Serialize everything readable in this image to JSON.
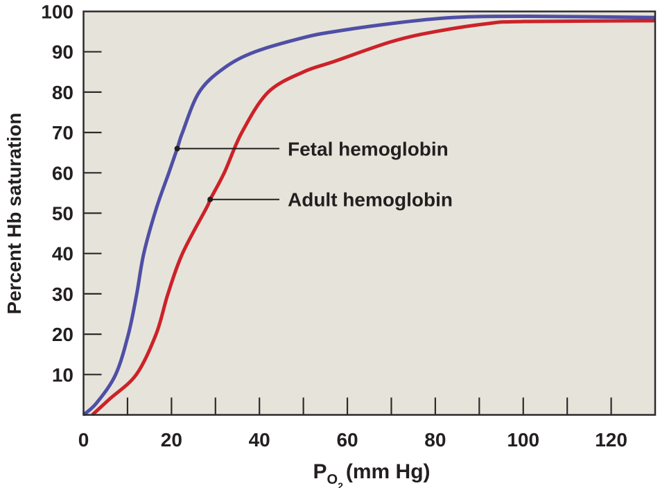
{
  "chart_data": {
    "type": "line",
    "title": "",
    "ylabel": "Percent Hb saturation",
    "xlabel": {
      "main": "P",
      "sub": "O",
      "subsub": "2",
      "unit": "(mm Hg)"
    },
    "xlim": [
      0,
      130
    ],
    "ylim": [
      0,
      100
    ],
    "xticks": [
      0,
      20,
      40,
      60,
      80,
      100,
      120
    ],
    "xminor_step": 10,
    "yticks": [
      10,
      20,
      30,
      40,
      50,
      60,
      70,
      80,
      90,
      100
    ],
    "grid": false,
    "background": "#e6e3da",
    "series": [
      {
        "name": "Fetal hemoglobin",
        "color": "#4f4fa6",
        "points": [
          [
            0,
            0
          ],
          [
            3,
            3
          ],
          [
            7.3,
            10
          ],
          [
            10.2,
            20
          ],
          [
            12.1,
            30
          ],
          [
            13.7,
            40
          ],
          [
            16.5,
            51
          ],
          [
            19.4,
            60
          ],
          [
            21.3,
            66
          ],
          [
            22.5,
            70
          ],
          [
            26.3,
            80
          ],
          [
            32,
            86
          ],
          [
            39,
            90
          ],
          [
            50,
            93.5
          ],
          [
            57,
            95
          ],
          [
            70,
            97
          ],
          [
            84,
            98.5
          ],
          [
            100,
            98.8
          ],
          [
            130,
            98.5
          ]
        ],
        "annotation": {
          "label": "Fetal hemoglobin",
          "at": [
            21.3,
            66
          ]
        }
      },
      {
        "name": "Adult hemoglobin",
        "color": "#cc2229",
        "points": [
          [
            2,
            0
          ],
          [
            6,
            4
          ],
          [
            12,
            10
          ],
          [
            16.5,
            20
          ],
          [
            19.2,
            30
          ],
          [
            22.5,
            40
          ],
          [
            28,
            51.4
          ],
          [
            28.8,
            53.4
          ],
          [
            32,
            60
          ],
          [
            36,
            70
          ],
          [
            42,
            80
          ],
          [
            50,
            85
          ],
          [
            57,
            87.6
          ],
          [
            70,
            92.5
          ],
          [
            80,
            95
          ],
          [
            92,
            97
          ],
          [
            100,
            97.5
          ],
          [
            130,
            97.7
          ]
        ],
        "annotation": {
          "label": "Adult hemoglobin",
          "at": [
            28.8,
            53.4
          ]
        }
      }
    ]
  }
}
